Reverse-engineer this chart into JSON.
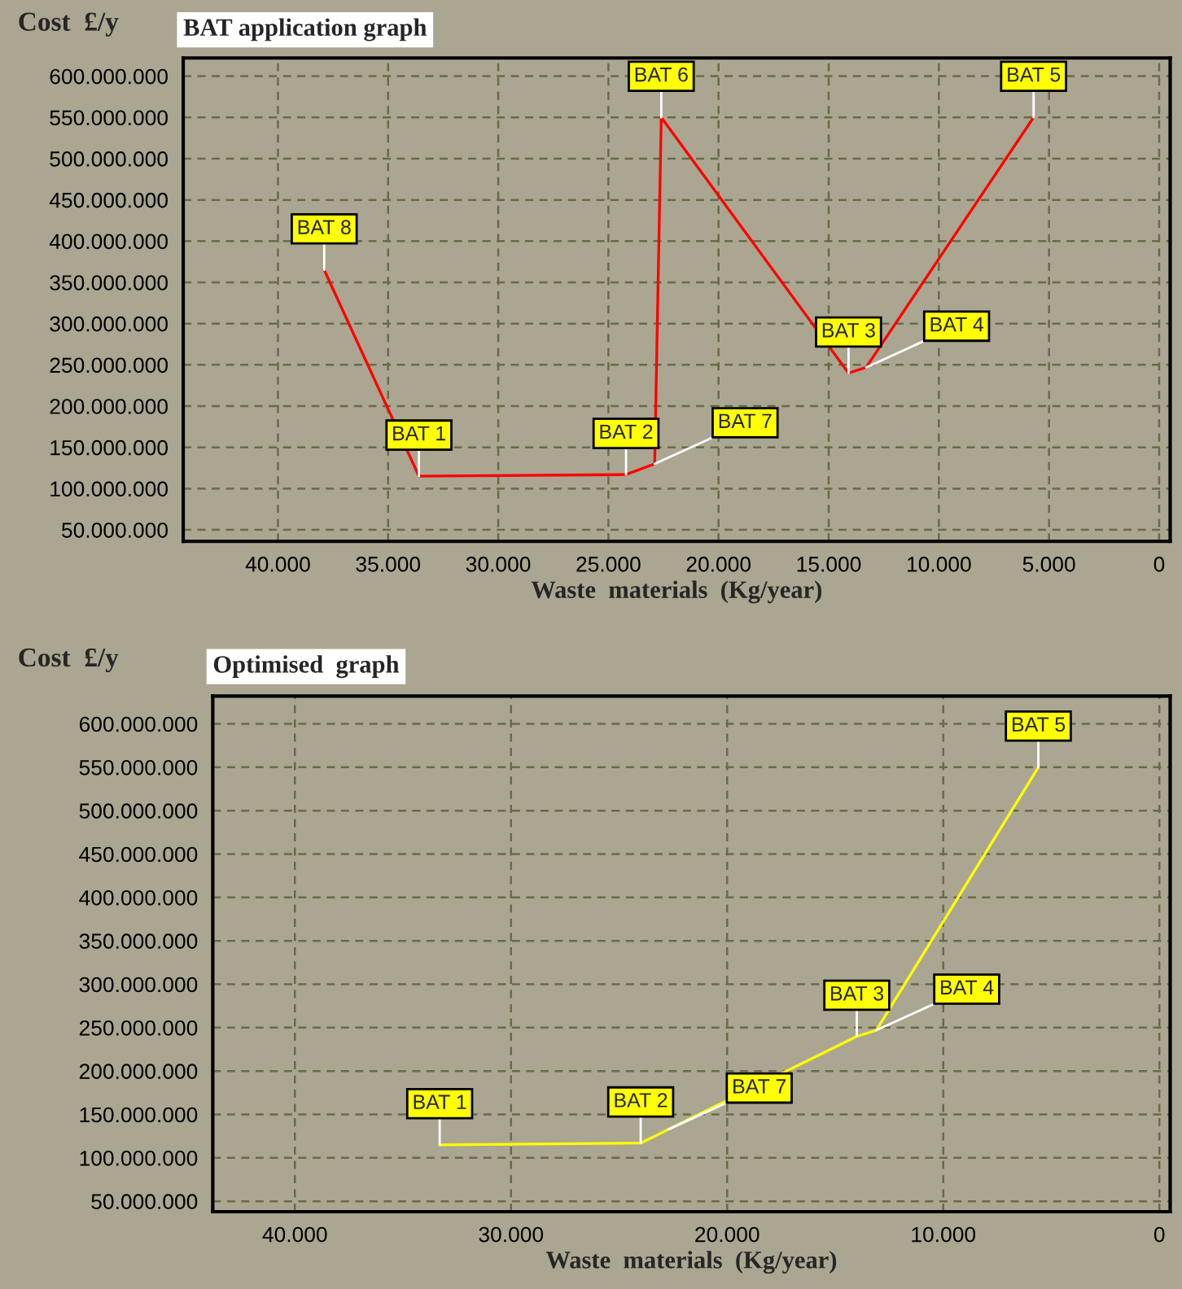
{
  "chart_data": [
    {
      "type": "line",
      "title": "BAT application graph",
      "xlabel": "Waste  materials  (Kg/year)",
      "ylabel": "Cost  £/y",
      "x": [
        37900,
        33600,
        24200,
        22900,
        22600,
        14100,
        13300,
        5700
      ],
      "series": [
        {
          "color": "#ff0000",
          "values": [
            365000000,
            115000000,
            117000000,
            130000000,
            550000000,
            240000000,
            247000000,
            550000000
          ]
        }
      ],
      "annotations": [
        {
          "text": "BAT 8",
          "x": 37900,
          "y": 365000000
        },
        {
          "text": "BAT 1",
          "x": 33600,
          "y": 115000000
        },
        {
          "text": "BAT 2",
          "x": 24200,
          "y": 117000000
        },
        {
          "text": "BAT 7",
          "x": 22900,
          "y": 130000000
        },
        {
          "text": "BAT 6",
          "x": 22600,
          "y": 550000000
        },
        {
          "text": "BAT 3",
          "x": 14100,
          "y": 240000000
        },
        {
          "text": "BAT 4",
          "x": 13300,
          "y": 247000000
        },
        {
          "text": "BAT 5",
          "x": 5700,
          "y": 550000000
        }
      ],
      "xlim": [
        44300,
        -500
      ],
      "ylim": [
        36000000,
        622000000
      ],
      "xticks": [
        {
          "value": 40000,
          "label": "40.000"
        },
        {
          "value": 35000,
          "label": "35.000"
        },
        {
          "value": 30000,
          "label": "30.000"
        },
        {
          "value": 25000,
          "label": "25.000"
        },
        {
          "value": 20000,
          "label": "20.000"
        },
        {
          "value": 15000,
          "label": "15.000"
        },
        {
          "value": 10000,
          "label": "10.000"
        },
        {
          "value": 5000,
          "label": "5.000"
        },
        0
      ],
      "yticks": [
        {
          "value": 50000000,
          "label": "50.000.000"
        },
        {
          "value": 100000000,
          "label": "100.000.000"
        },
        {
          "value": 150000000,
          "label": "150.000.000"
        },
        {
          "value": 200000000,
          "label": "200.000.000"
        },
        {
          "value": 250000000,
          "label": "250.000.000"
        },
        {
          "value": 300000000,
          "label": "300.000.000"
        },
        {
          "value": 350000000,
          "label": "350.000.000"
        },
        {
          "value": 400000000,
          "label": "400.000.000"
        },
        {
          "value": 450000000,
          "label": "450.000.000"
        },
        {
          "value": 500000000,
          "label": "500.000.000"
        },
        {
          "value": 550000000,
          "label": "550.000.000"
        },
        {
          "value": 600000000,
          "label": "600.000.000"
        }
      ],
      "grid": true,
      "marker": "none",
      "line_style": "solid"
    },
    {
      "type": "line",
      "title": "Optimised  graph",
      "xlabel": "Waste  materials  (Kg/year)",
      "ylabel": "Cost  £/y",
      "x": [
        33300,
        24000,
        22700,
        14000,
        13100,
        5600
      ],
      "series": [
        {
          "color": "#ffff00",
          "values": [
            115000000,
            117000000,
            133000000,
            240000000,
            247000000,
            550000000
          ]
        }
      ],
      "annotations": [
        {
          "text": "BAT 1",
          "x": 33300,
          "y": 115000000
        },
        {
          "text": "BAT 2",
          "x": 24000,
          "y": 117000000
        },
        {
          "text": "BAT 7",
          "x": 22700,
          "y": 133000000
        },
        {
          "text": "BAT 3",
          "x": 14000,
          "y": 240000000
        },
        {
          "text": "BAT 4",
          "x": 13100,
          "y": 247000000
        },
        {
          "text": "BAT 5",
          "x": 5600,
          "y": 550000000
        }
      ],
      "xlim": [
        43800,
        -500
      ],
      "ylim": [
        38000000,
        632000000
      ],
      "xticks": [
        {
          "value": 40000,
          "label": "40.000"
        },
        {
          "value": 30000,
          "label": "30.000"
        },
        {
          "value": 20000,
          "label": "20.000"
        },
        {
          "value": 10000,
          "label": "10.000"
        },
        0
      ],
      "yticks": [
        {
          "value": 50000000,
          "label": "50.000.000"
        },
        {
          "value": 100000000,
          "label": "100.000.000"
        },
        {
          "value": 150000000,
          "label": "150.000.000"
        },
        {
          "value": 200000000,
          "label": "200.000.000"
        },
        {
          "value": 250000000,
          "label": "250.000.000"
        },
        {
          "value": 300000000,
          "label": "300.000.000"
        },
        {
          "value": 350000000,
          "label": "350.000.000"
        },
        {
          "value": 400000000,
          "label": "400.000.000"
        },
        {
          "value": 450000000,
          "label": "450.000.000"
        },
        {
          "value": 500000000,
          "label": "500.000.000"
        },
        {
          "value": 550000000,
          "label": "550.000.000"
        },
        {
          "value": 600000000,
          "label": "600.000.000"
        }
      ],
      "grid": true,
      "marker": "none",
      "line_style": "solid"
    }
  ]
}
